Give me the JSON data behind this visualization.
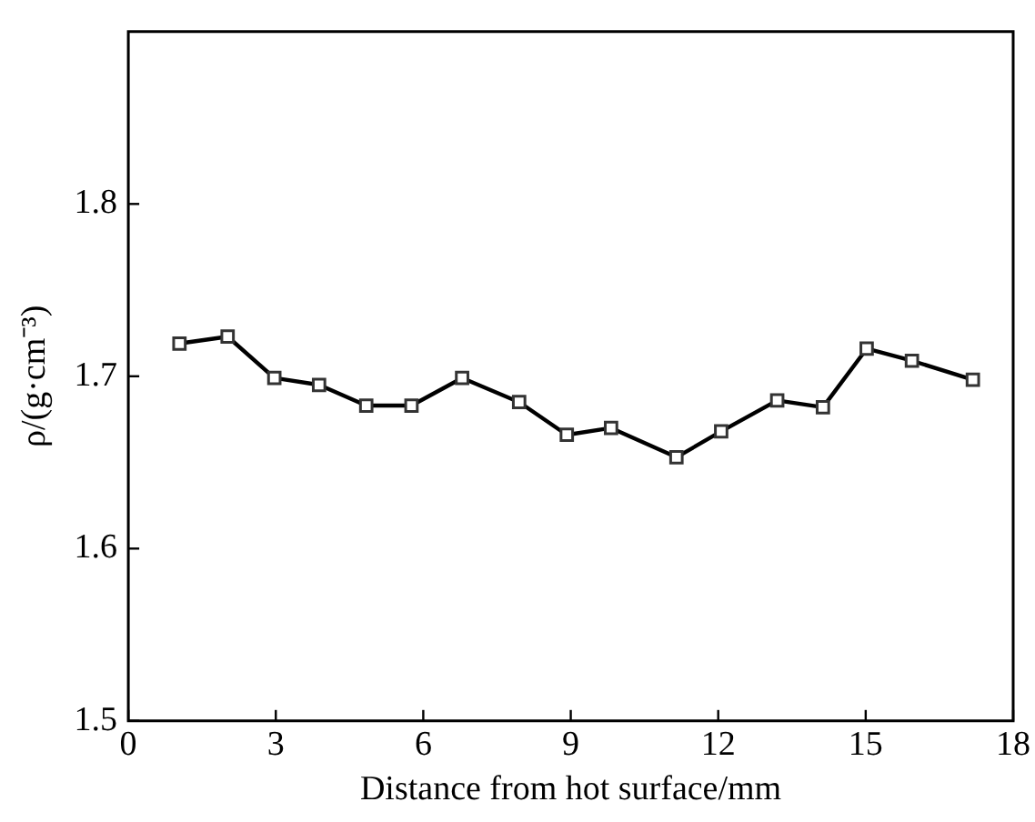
{
  "chart_data": {
    "type": "line",
    "xlabel": "Distance from hot surface/mm",
    "ylabel": "ρ/(g·cm⁻³)",
    "marker": "square",
    "line_style": "solid",
    "grid": false,
    "legend": false,
    "x": [
      1.04,
      2.02,
      2.97,
      3.88,
      4.84,
      5.76,
      6.79,
      7.95,
      8.92,
      9.82,
      11.15,
      12.06,
      13.2,
      14.13,
      15.02,
      15.94,
      17.18
    ],
    "series": [
      {
        "color": "#000000",
        "values": [
          1.719,
          1.723,
          1.699,
          1.695,
          1.683,
          1.683,
          1.699,
          1.685,
          1.666,
          1.67,
          1.653,
          1.668,
          1.686,
          1.682,
          1.716,
          1.709,
          1.698
        ]
      }
    ],
    "xlim": [
      0,
      18
    ],
    "xticks": [
      0,
      3,
      6,
      9,
      12,
      15,
      18
    ],
    "ylim": [
      1.5,
      1.9
    ],
    "yticks": [
      1.5,
      1.6,
      1.7,
      1.8
    ]
  }
}
